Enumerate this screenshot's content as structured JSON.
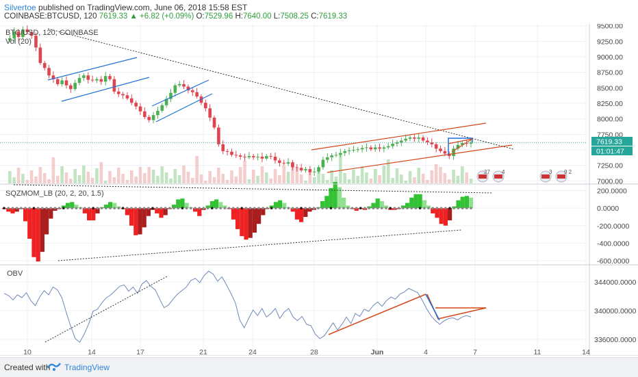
{
  "header": {
    "author": "Silvertoe",
    "published_text": "published on TradingView.com, June 06, 2018 15:58 EST",
    "symbol": "COINBASE:BTCUSD, 120",
    "change": "7619.33 ▲ +6.82 (+0.09%)",
    "o_label": "O:",
    "o_value": "7529.96",
    "h_label": "H:",
    "h_value": "7640.00",
    "l_label": "L:",
    "l_value": "7508.25",
    "c_label": "C:",
    "c_value": "7619.33"
  },
  "price_panel": {
    "legend_title": "BTC/USD, 120, COINBASE",
    "legend_vol": "Vol (20)",
    "last_price_tag": "7619.33",
    "countdown_tag": "01:01:47",
    "event_badges": [
      "27",
      "4",
      "3",
      "9 2"
    ]
  },
  "sqz_panel": {
    "legend": "SQZMOM_LB (20, 2, 20, 1.5)"
  },
  "obv_panel": {
    "legend": "OBV"
  },
  "footer": {
    "created_with": "Created with",
    "brand": "TradingView"
  },
  "colors": {
    "up": "#26a69a",
    "up_candle": "#4caf50",
    "down_candle": "#e0454f",
    "channel_blue": "#1e6fd9",
    "channel_red": "#d4471a",
    "grid": "#eef0f4",
    "obv_line": "#6d88b8",
    "sqz_green": "#7fd47f",
    "sqz_red": "#ea3b3b"
  },
  "chart_data": [
    {
      "type": "candlestick",
      "title": "BTC/USD, 120, COINBASE",
      "x_tick_labels": [
        "10",
        "14",
        "17",
        "21",
        "24",
        "28",
        "Jun",
        "4",
        "7",
        "11",
        "14"
      ],
      "y_tick_labels": [
        "9500.00",
        "9250.00",
        "9000.00",
        "8750.00",
        "8500.00",
        "8250.00",
        "8000.00",
        "7750.00",
        "7500.00",
        "7250.00",
        "7000.00"
      ],
      "ylim": [
        6960,
        9530
      ],
      "close_series_approx": [
        9270,
        9300,
        9410,
        9320,
        9440,
        9400,
        9340,
        9150,
        8900,
        8820,
        8700,
        8640,
        8560,
        8620,
        8540,
        8480,
        8580,
        8660,
        8700,
        8630,
        8620,
        8640,
        8600,
        8690,
        8640,
        8440,
        8400,
        8380,
        8330,
        8260,
        8200,
        8120,
        8030,
        7980,
        8060,
        8130,
        8220,
        8320,
        8420,
        8540,
        8560,
        8520,
        8460,
        8430,
        8360,
        8260,
        8170,
        8020,
        7860,
        7590,
        7480,
        7470,
        7420,
        7410,
        7390,
        7380,
        7400,
        7380,
        7390,
        7360,
        7400,
        7390,
        7330,
        7290,
        7280,
        7300,
        7220,
        7210,
        7170,
        7190,
        7140,
        7150,
        7220,
        7340,
        7380,
        7410,
        7420,
        7450,
        7480,
        7490,
        7500,
        7510,
        7530,
        7540,
        7510,
        7540,
        7520,
        7540,
        7560,
        7600,
        7620,
        7650,
        7680,
        7700,
        7680,
        7700,
        7650,
        7620,
        7590,
        7520,
        7480,
        7440,
        7400,
        7520,
        7580,
        7610,
        7600,
        7619.33
      ],
      "last_value": 7619.33,
      "volume_series": "Vol (20)"
    },
    {
      "type": "bar",
      "title": "SQZMOM_LB (20, 2, 20, 1.5)",
      "y_tick_labels": [
        "200.0000",
        "0.0000",
        "-200.0000",
        "-400.0000",
        "-600.0000"
      ],
      "ylim": [
        -640,
        260
      ],
      "values_approx": [
        -10,
        -40,
        -60,
        -40,
        -10,
        -150,
        -350,
        -560,
        -610,
        -500,
        -300,
        -120,
        -30,
        -10,
        30,
        60,
        70,
        40,
        10,
        -60,
        -140,
        -140,
        -60,
        10,
        40,
        70,
        60,
        20,
        -10,
        -80,
        -200,
        -310,
        -300,
        -220,
        -90,
        -20,
        -60,
        -110,
        -80,
        -10,
        40,
        100,
        110,
        60,
        10,
        -40,
        -90,
        -20,
        30,
        80,
        100,
        70,
        30,
        -10,
        -130,
        -240,
        -320,
        -360,
        -340,
        -280,
        -180,
        -80,
        -10,
        30,
        70,
        90,
        60,
        10,
        -40,
        -130,
        -160,
        -100,
        -40,
        -20,
        10,
        80,
        140,
        230,
        300,
        240,
        120,
        30,
        -10,
        -30,
        -10,
        -20,
        20,
        60,
        110,
        80,
        30,
        -20,
        -20,
        -10,
        30,
        60,
        120,
        160,
        160,
        90,
        30,
        -60,
        -110,
        -180,
        -200,
        -140,
        20,
        90,
        130,
        140,
        120
      ]
    },
    {
      "type": "line",
      "title": "OBV",
      "y_tick_labels": [
        "344000.0000",
        "340000.0000",
        "336000.0000"
      ],
      "ylim": [
        333800,
        346200
      ],
      "values_approx": [
        342400,
        342100,
        341500,
        342200,
        341800,
        342500,
        341400,
        340700,
        341900,
        342800,
        342200,
        343300,
        342900,
        341800,
        339700,
        337800,
        336100,
        335600,
        336700,
        338100,
        339900,
        340200,
        341100,
        341800,
        342200,
        342800,
        343400,
        343600,
        342700,
        343300,
        342400,
        343700,
        344200,
        343400,
        342900,
        341600,
        340400,
        340800,
        341600,
        342300,
        342800,
        343300,
        344200,
        344500,
        343900,
        344900,
        345500,
        345100,
        344100,
        344700,
        343600,
        342400,
        341100,
        338700,
        337600,
        338900,
        340100,
        339300,
        340300,
        339100,
        339600,
        340300,
        338900,
        339800,
        340300,
        339100,
        338600,
        339200,
        338100,
        337900,
        336700,
        336100,
        336500,
        337400,
        338300,
        337300,
        338100,
        339100,
        338200,
        339600,
        339200,
        340200,
        339900,
        340700,
        341200,
        340600,
        341400,
        341900,
        341600,
        342300,
        342600,
        343100,
        342800,
        342500,
        341500,
        340300,
        339300,
        338600,
        338100,
        338600,
        338900,
        339000,
        338700,
        339100,
        339300,
        339100
      ]
    }
  ]
}
